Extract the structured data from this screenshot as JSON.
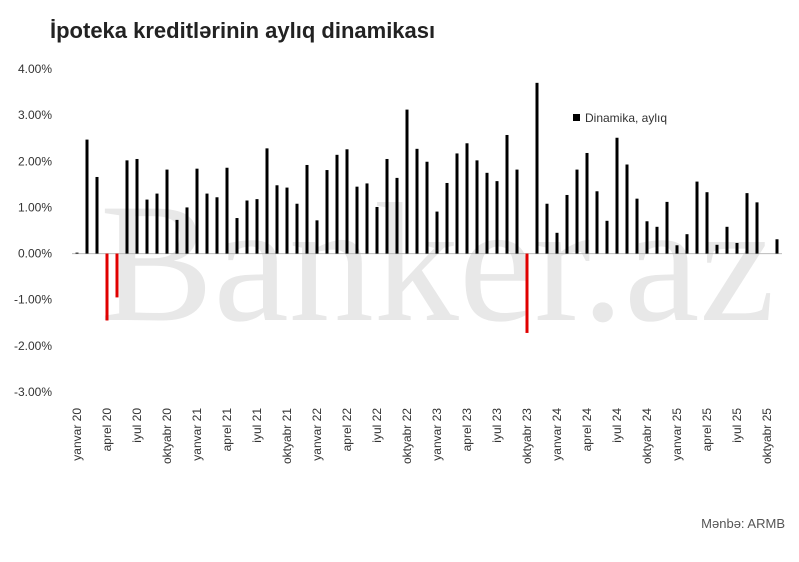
{
  "chart_data": {
    "type": "bar",
    "title": "İpoteka kreditlərinin aylıq dinamikası",
    "source": "Mənbə: ARMB",
    "watermark": "Banker.az",
    "categories": [
      "yanvar 20",
      null,
      null,
      "aprel 20",
      null,
      null,
      "iyul 20",
      null,
      null,
      "oktyabr 20",
      null,
      null,
      "yanvar 21",
      null,
      null,
      "aprel 21",
      null,
      null,
      "iyul 21",
      null,
      null,
      "oktyabr 21",
      null,
      null,
      "yanvar 22",
      null,
      null,
      "aprel 22",
      null,
      null,
      "iyul 22",
      null,
      null,
      "oktyabr 22",
      null,
      null,
      "yanvar 23",
      null,
      null,
      "aprel 23",
      null,
      null,
      "iyul 23",
      null,
      null,
      "oktyabr 23",
      null,
      null,
      "yanvar 24",
      null,
      null,
      "aprel 24",
      null,
      null,
      "iyul 24",
      null,
      null,
      "oktyabr 24",
      null,
      null,
      "yanvar 25",
      null,
      null,
      "aprel 25",
      null,
      null,
      "iyul 25",
      null,
      null,
      "oktyabr 25",
      null
    ],
    "series": [
      {
        "name": "Dinamika, aylıq",
        "color": "#000000",
        "negative_color": "#e00000",
        "values": [
          0.02,
          2.47,
          1.66,
          -1.45,
          -0.95,
          2.02,
          2.05,
          1.17,
          1.3,
          1.82,
          0.73,
          1.0,
          1.84,
          1.3,
          1.22,
          1.86,
          0.77,
          1.15,
          1.18,
          2.28,
          1.48,
          1.43,
          1.08,
          1.92,
          0.72,
          1.81,
          2.14,
          2.26,
          1.45,
          1.52,
          1.01,
          2.05,
          1.64,
          3.12,
          2.27,
          1.99,
          0.91,
          1.53,
          2.17,
          2.39,
          2.02,
          1.75,
          1.57,
          2.57,
          1.82,
          -1.72,
          3.7,
          1.08,
          0.45,
          1.27,
          1.82,
          2.18,
          1.35,
          0.71,
          2.51,
          1.93,
          1.19,
          0.7,
          0.58,
          1.12,
          0.18,
          0.42,
          1.56,
          1.33,
          0.19,
          0.58,
          0.23,
          1.31,
          1.11,
          null,
          0.31
        ]
      }
    ],
    "ylim": [
      -3,
      4
    ],
    "yticks": [
      {
        "value": -3,
        "label": "-3.00%"
      },
      {
        "value": -2,
        "label": "-2.00%"
      },
      {
        "value": -1,
        "label": "-1.00%"
      },
      {
        "value": 0,
        "label": "0.00%"
      },
      {
        "value": 1,
        "label": "1.00%"
      },
      {
        "value": 2,
        "label": "2.00%"
      },
      {
        "value": 3,
        "label": "3.00%"
      },
      {
        "value": 4,
        "label": "4.00%"
      }
    ],
    "grid": false
  }
}
